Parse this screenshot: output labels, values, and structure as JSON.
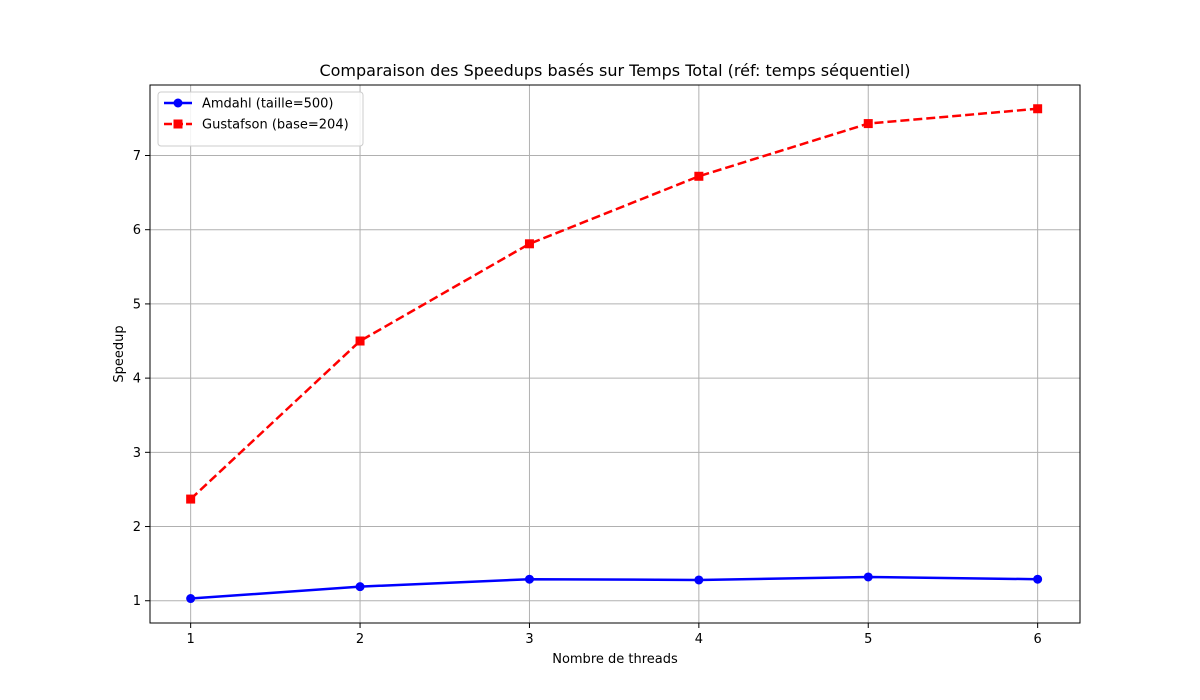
{
  "chart_data": {
    "type": "line",
    "title": "Comparaison des Speedups basés sur Temps Total (réf: temps séquentiel)",
    "xlabel": "Nombre de threads",
    "ylabel": "Speedup",
    "x": [
      1,
      2,
      3,
      4,
      5,
      6
    ],
    "xlim": [
      0.76,
      6.25
    ],
    "ylim": [
      0.7,
      7.95
    ],
    "xticks": [
      "1",
      "2",
      "3",
      "4",
      "5",
      "6"
    ],
    "yticks": [
      "1",
      "2",
      "3",
      "4",
      "5",
      "6",
      "7"
    ],
    "grid": true,
    "legend_position": "top-left",
    "series": [
      {
        "name": "Amdahl (taille=500)",
        "values": [
          1.03,
          1.19,
          1.29,
          1.28,
          1.32,
          1.29
        ],
        "color": "#0000ff",
        "line_style": "solid",
        "marker": "circle"
      },
      {
        "name": "Gustafson (base=204)",
        "values": [
          2.37,
          4.5,
          5.81,
          6.72,
          7.43,
          7.63
        ],
        "color": "#ff0000",
        "line_style": "dashed",
        "marker": "square"
      }
    ]
  }
}
